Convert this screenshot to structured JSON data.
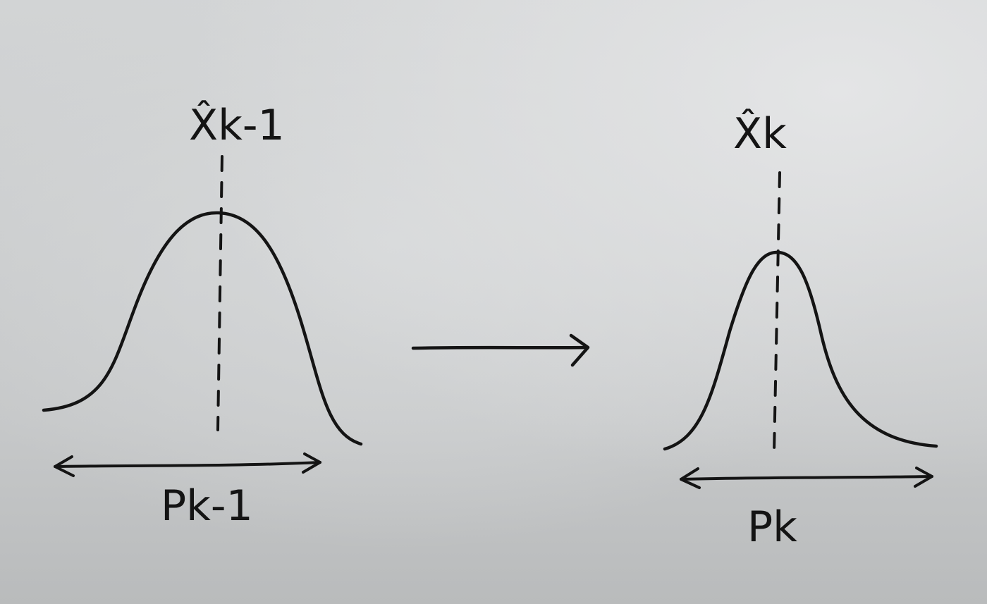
{
  "diagram": {
    "prior": {
      "mean_label": "X̂k-1",
      "covariance_label": "Pk-1"
    },
    "posterior": {
      "mean_label": "X̂k",
      "covariance_label": "Pk"
    },
    "colors": {
      "ink": "#141414",
      "paper": "#d2d4d5"
    }
  }
}
